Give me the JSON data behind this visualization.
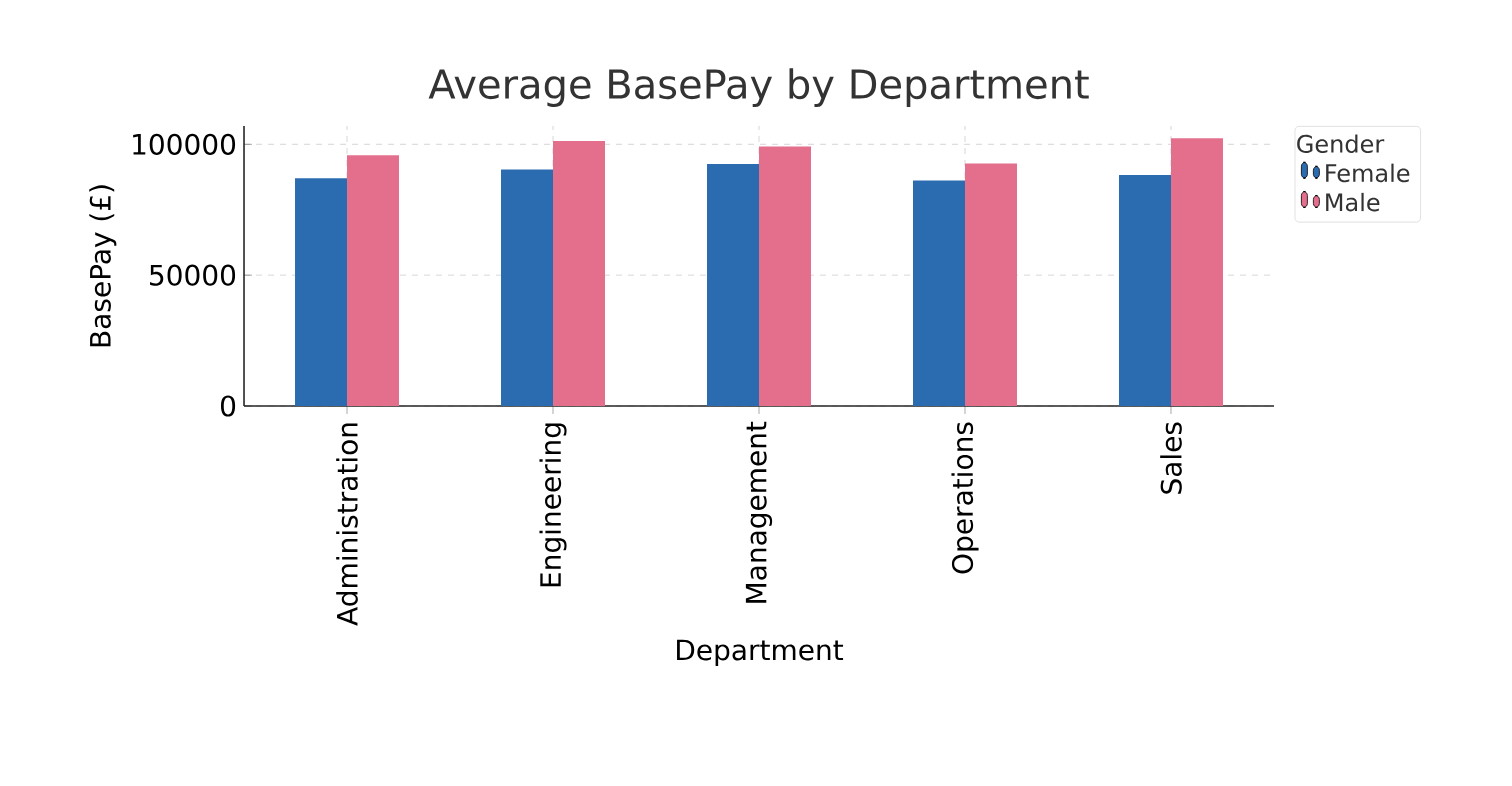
{
  "chart_data": {
    "type": "bar",
    "title": "Average BasePay by Department",
    "xlabel": "Department",
    "ylabel": "BasePay (£)",
    "legend_title": "Gender",
    "categories": [
      "Administration",
      "Engineering",
      "Management",
      "Operations",
      "Sales"
    ],
    "series": [
      {
        "name": "Female",
        "color": "#2b6cb0",
        "values": [
          87000,
          90400,
          92500,
          86200,
          88300
        ]
      },
      {
        "name": "Male",
        "color": "#e46f8c",
        "values": [
          95800,
          101300,
          99200,
          92700,
          102300
        ]
      }
    ],
    "ylim": [
      0,
      107000
    ],
    "yticks": [
      0,
      50000,
      100000
    ],
    "grid": true,
    "legend": "right"
  }
}
